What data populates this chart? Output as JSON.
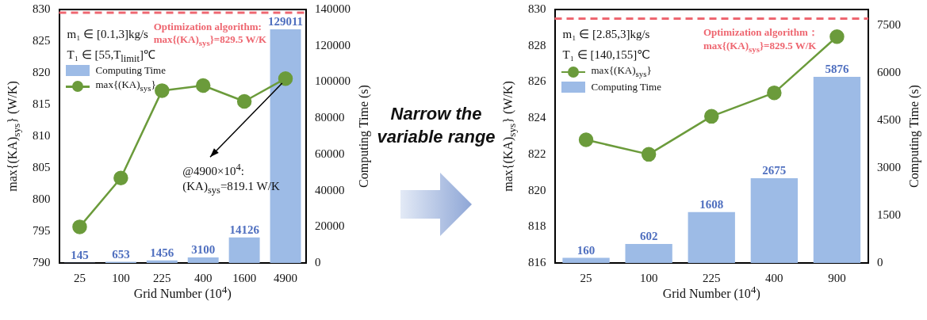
{
  "chart_data": [
    {
      "type": "bar",
      "xlabel": "Grid Number (10$^{4}$)",
      "ylabel": "max{(KA)$_{sys}$} (W/K)",
      "y2label": "Computing Time (s)",
      "categories": [
        "25",
        "100",
        "225",
        "400",
        "1600",
        "4900"
      ],
      "series": [
        {
          "name": "Computing Time",
          "type": "bar",
          "axis": "y2",
          "color": "#9dbbe6",
          "values": [
            145,
            653,
            1456,
            3100,
            14126,
            129011
          ],
          "value_labels": [
            "145",
            "653",
            "1456",
            "3100",
            "14126",
            "129011"
          ]
        },
        {
          "name": "max{(KA)$_{sys}$}",
          "type": "line",
          "color": "#6b9b3b",
          "values": [
            795.7,
            803.4,
            817.2,
            818.0,
            815.5,
            819.1
          ]
        }
      ],
      "ylim": [
        790,
        830
      ],
      "yticks": [
        790,
        795,
        800,
        805,
        810,
        815,
        820,
        825,
        830
      ],
      "y2lim": [
        0,
        140000
      ],
      "y2ticks": [
        0,
        20000,
        40000,
        60000,
        80000,
        100000,
        120000,
        140000
      ],
      "ref_lines": [
        {
          "axis": "y",
          "value": 829.5,
          "label": "Optimization algorithm:\nmax{(KA)$_{sys}$}=829.5 W/K",
          "color": "#ee6670",
          "line_style": "dashed"
        }
      ],
      "annotations": [
        "m₁ ∈ [0.1,3]kg/s",
        "T₁ ∈ [55,T$_{limit}$]℃",
        "@4900×10$^{4}$:\n(KA)$_{sys}$=819.1 W/K"
      ],
      "legend": "left",
      "marker": "circle",
      "line_style": "solid",
      "grid": false
    },
    {
      "type": "other",
      "title": "Narrow the variable range"
    },
    {
      "type": "bar",
      "xlabel": "Grid Number (10$^{4}$)",
      "ylabel": "max{(KA)$_{sys}$} (W/K)",
      "y2label": "Computing Time (s)",
      "categories": [
        "25",
        "100",
        "225",
        "400",
        "900"
      ],
      "series": [
        {
          "name": "max{(KA)$_{sys}$}",
          "type": "line",
          "color": "#6b9b3b",
          "values": [
            822.8,
            822.0,
            824.1,
            825.4,
            828.5
          ]
        },
        {
          "name": "Computing Time",
          "type": "bar",
          "axis": "y2",
          "color": "#9dbbe6",
          "values": [
            160,
            602,
            1608,
            2675,
            5876
          ],
          "value_labels": [
            "160",
            "602",
            "1608",
            "2675",
            "5876"
          ]
        }
      ],
      "ylim": [
        816,
        830
      ],
      "yticks": [
        816,
        818,
        820,
        822,
        824,
        826,
        828,
        830
      ],
      "y2lim": [
        0,
        8000
      ],
      "y2ticks": [
        0,
        1500,
        3000,
        4500,
        6000,
        7500
      ],
      "ref_lines": [
        {
          "axis": "y",
          "value": 829.5,
          "label": "Optimization algorithm：\nmax{(KA)$_{sys}$}=829.5 W/K",
          "color": "#ee6670",
          "line_style": "dashed"
        }
      ],
      "annotations": [
        "m₁ ∈ [2.85,3]kg/s",
        "T₁ ∈ [140,155]℃"
      ],
      "legend": "left",
      "marker": "circle",
      "line_style": "solid",
      "grid": false
    }
  ]
}
